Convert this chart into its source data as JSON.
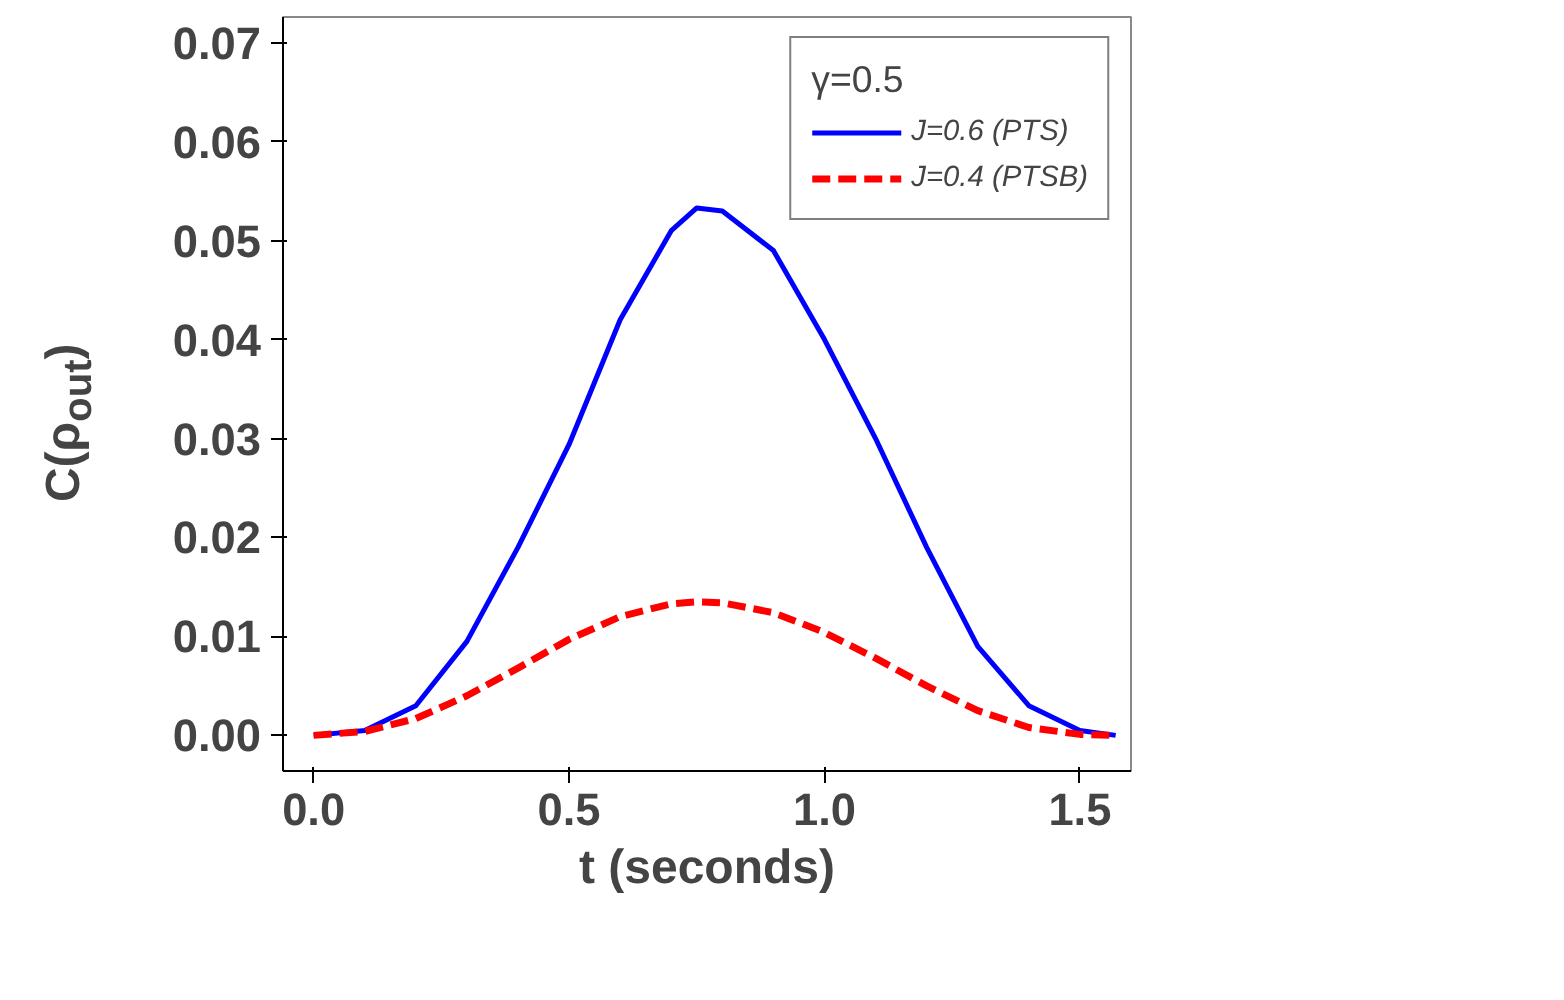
{
  "chart_data": {
    "type": "line",
    "xlabel": "t (seconds)",
    "ylabel": "C(ρ$_{out}$)",
    "legend_title": "γ=0.5",
    "legend": "top right",
    "grid": false,
    "xlim": [
      -0.06,
      1.6
    ],
    "ylim": [
      -0.0036,
      0.0726
    ],
    "xticks": [
      {
        "value": 0,
        "label": "0.0"
      },
      {
        "value": 0.5,
        "label": "0.5"
      },
      {
        "value": 1,
        "label": "1.0"
      },
      {
        "value": 1.5,
        "label": "1.5"
      }
    ],
    "yticks": [
      {
        "value": 0,
        "label": "0.00"
      },
      {
        "value": 0.01,
        "label": "0.01"
      },
      {
        "value": 0.02,
        "label": "0.02"
      },
      {
        "value": 0.03,
        "label": "0.03"
      },
      {
        "value": 0.04,
        "label": "0.04"
      },
      {
        "value": 0.05,
        "label": "0.05"
      },
      {
        "value": 0.06,
        "label": "0.06"
      },
      {
        "value": 0.07,
        "label": "0.07"
      }
    ],
    "x": [
      0,
      0.1,
      0.2,
      0.3,
      0.4,
      0.5,
      0.6,
      0.7,
      0.75,
      0.8,
      0.9,
      1.0,
      1.1,
      1.2,
      1.3,
      1.4,
      1.5,
      1.57
    ],
    "series": [
      {
        "name": "J=0.6 (PTS)",
        "color": "#0000ff",
        "line_style": "solid",
        "values": [
          0,
          0.0005,
          0.003,
          0.0095,
          0.019,
          0.0294,
          0.042,
          0.051,
          0.0533,
          0.053,
          0.049,
          0.04,
          0.03,
          0.019,
          0.009,
          0.003,
          0.0005,
          0
        ]
      },
      {
        "name": "J=0.4 (PTSB)",
        "color": "#ff0000",
        "line_style": "dashed",
        "values": [
          0,
          0.0004,
          0.0017,
          0.004,
          0.0068,
          0.0097,
          0.012,
          0.0133,
          0.0135,
          0.0134,
          0.0124,
          0.0104,
          0.0078,
          0.005,
          0.0025,
          0.0008,
          0.0001,
          0
        ]
      }
    ]
  }
}
